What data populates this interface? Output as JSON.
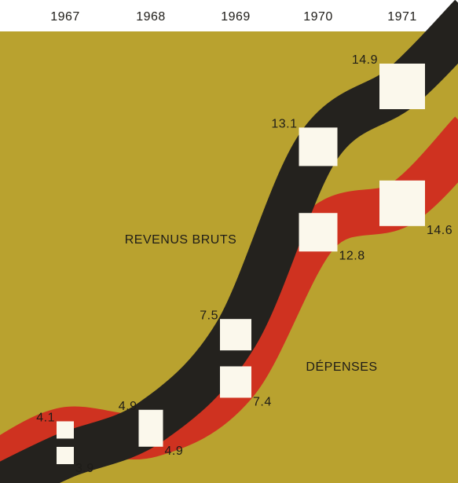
{
  "chart_data": {
    "type": "line",
    "categories": [
      "1967",
      "1968",
      "1969",
      "1970",
      "1971"
    ],
    "series": [
      {
        "name": "REVENUS BRUTS",
        "color": "#24221e",
        "values": [
          3.9,
          4.9,
          7.5,
          13.1,
          14.9
        ]
      },
      {
        "name": "DÉPENSES",
        "color": "#cf3220",
        "values": [
          4.1,
          4.9,
          7.4,
          12.8,
          14.6
        ]
      }
    ]
  }
}
